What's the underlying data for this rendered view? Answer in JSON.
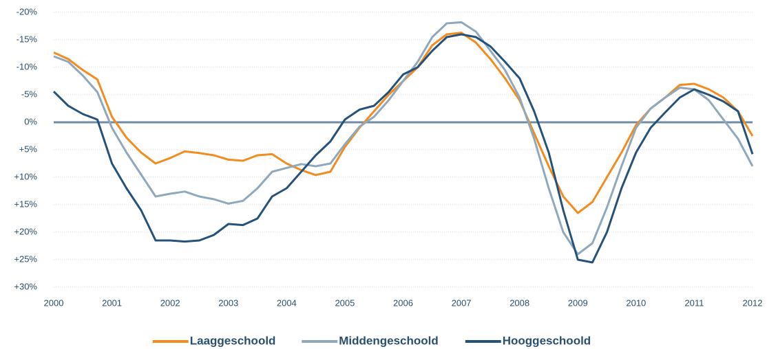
{
  "chart_data": {
    "type": "line",
    "x": [
      2000,
      2000.25,
      2000.5,
      2000.75,
      2001,
      2001.25,
      2001.5,
      2001.75,
      2002,
      2002.25,
      2002.5,
      2002.75,
      2003,
      2003.25,
      2003.5,
      2003.75,
      2004,
      2004.25,
      2004.5,
      2004.75,
      2005,
      2005.25,
      2005.5,
      2005.75,
      2006,
      2006.25,
      2006.5,
      2006.75,
      2007,
      2007.25,
      2007.5,
      2007.75,
      2008,
      2008.25,
      2008.5,
      2008.75,
      2009,
      2009.25,
      2009.5,
      2009.75,
      2010,
      2010.25,
      2010.5,
      2010.75,
      2011,
      2011.25,
      2011.5,
      2011.75,
      2012
    ],
    "series": [
      {
        "name": "Laaggeschoold",
        "color": "#f28c1e",
        "values": [
          -12.7,
          -11.5,
          -9.5,
          -7.8,
          -1,
          2.8,
          5.5,
          7.5,
          6.5,
          5.3,
          5.6,
          6,
          6.8,
          7,
          6,
          5.8,
          7.5,
          8.7,
          9.6,
          9,
          4.5,
          1,
          -2,
          -5,
          -7.5,
          -10,
          -14,
          -16,
          -16.3,
          -14.5,
          -11.5,
          -8,
          -4,
          2,
          8,
          13.5,
          16.5,
          14.5,
          10,
          5.5,
          0.5,
          -2.5,
          -4.5,
          -6.8,
          -7,
          -6,
          -4.5,
          -2,
          2.5
        ]
      },
      {
        "name": "Middengeschoold",
        "color": "#8fa8bd",
        "values": [
          -12,
          -11,
          -8.5,
          -5.5,
          1,
          5.5,
          9.5,
          13.5,
          13,
          12.6,
          13.5,
          14,
          14.8,
          14.3,
          12,
          9,
          8.3,
          7.6,
          8,
          7.5,
          4,
          0.8,
          -1,
          -4,
          -7.5,
          -11,
          -15.5,
          -18,
          -18.2,
          -16.5,
          -13,
          -9.5,
          -4.5,
          3,
          12,
          20,
          24,
          22,
          15.5,
          8,
          1,
          -2.5,
          -4.5,
          -6.3,
          -6,
          -4,
          -0.5,
          3,
          8
        ]
      },
      {
        "name": "Hooggeschoold",
        "color": "#24527a",
        "values": [
          -5.6,
          -3,
          -1.5,
          -0.5,
          7.5,
          12,
          16,
          21.5,
          21.5,
          21.7,
          21.5,
          20.5,
          18.5,
          18.7,
          17.5,
          13.5,
          12,
          9,
          6,
          3.5,
          -0.5,
          -2.3,
          -3,
          -5.5,
          -8.7,
          -10,
          -13,
          -15.5,
          -16,
          -15.5,
          -13.8,
          -11,
          -8,
          -2,
          5.5,
          16,
          25,
          25.5,
          20,
          12,
          5.5,
          1,
          -1.8,
          -4.5,
          -6,
          -5,
          -3.8,
          -2,
          5.8
        ]
      }
    ],
    "xlim": [
      2000,
      2012
    ],
    "xticks": [
      2000,
      2001,
      2002,
      2003,
      2004,
      2005,
      2006,
      2007,
      2008,
      2009,
      2010,
      2011,
      2012
    ],
    "ylim": [
      30,
      -20
    ],
    "yticks": [
      {
        "value": -20,
        "label": "-20%"
      },
      {
        "value": -15,
        "label": "-15%"
      },
      {
        "value": -10,
        "label": "-10%"
      },
      {
        "value": -5,
        "label": "-5%"
      },
      {
        "value": 0,
        "label": "0%"
      },
      {
        "value": 5,
        "label": "+5%"
      },
      {
        "value": 10,
        "label": "+10%"
      },
      {
        "value": 15,
        "label": "+15%"
      },
      {
        "value": 20,
        "label": "+20%"
      },
      {
        "value": 25,
        "label": "+25%"
      },
      {
        "value": 30,
        "label": "+30%"
      }
    ],
    "grid": true,
    "zero_line": true,
    "legend": "bottom"
  }
}
